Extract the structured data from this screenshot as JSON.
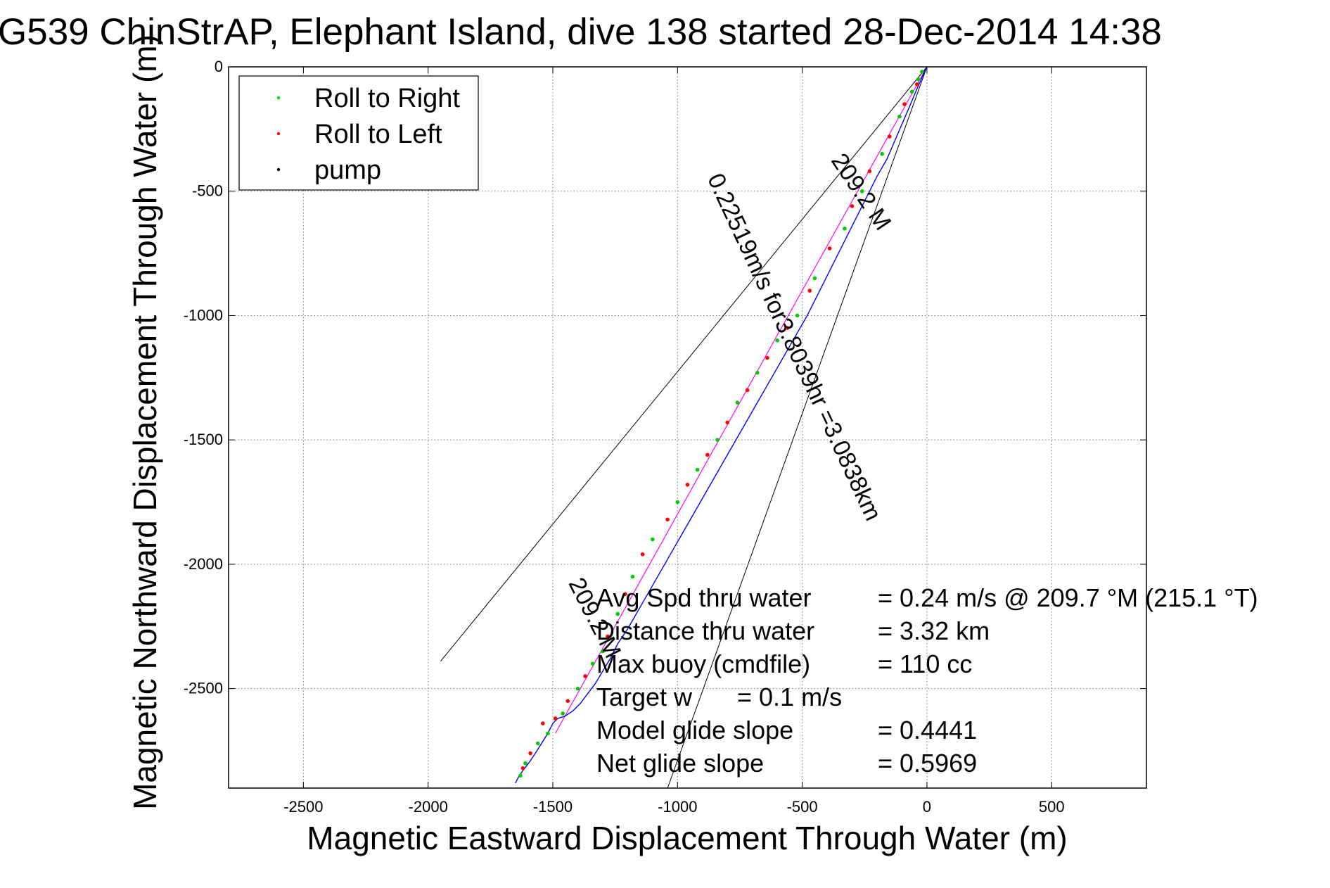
{
  "chart_data": {
    "type": "line",
    "title": "G539 ChinStrAP, Elephant Island, dive 138 started 28-Dec-2014 14:38",
    "xlabel": "Magnetic Eastward Displacement Through Water (m)",
    "ylabel": "Magnetic Northward Displacement Through Water (m)",
    "xlim": [
      -2800,
      880
    ],
    "ylim": [
      -2900,
      0
    ],
    "xticks": [
      -2500,
      -2000,
      -1500,
      -1000,
      -500,
      0,
      500
    ],
    "yticks": [
      0,
      -500,
      -1000,
      -1500,
      -2000,
      -2500
    ],
    "grid": true,
    "legend_position": "top-left",
    "legend": [
      {
        "label": "Roll to Right",
        "color": "#00dd00"
      },
      {
        "label": "Roll to Left",
        "color": "#ff0000"
      },
      {
        "label": "pump",
        "color": "#000000"
      }
    ],
    "series": [
      {
        "name": "Roll to Right",
        "color": "#00cc00",
        "x": [
          -20,
          -35,
          -60,
          -110,
          -180,
          -260,
          -330,
          -450,
          -520,
          -600,
          -680,
          -760,
          -840,
          -920,
          -1000,
          -1100,
          -1180,
          -1240,
          -1300,
          -1340,
          -1400,
          -1460,
          -1520,
          -1560,
          -1610,
          -1630
        ],
        "y": [
          -20,
          -50,
          -100,
          -200,
          -350,
          -500,
          -650,
          -850,
          -1000,
          -1100,
          -1230,
          -1350,
          -1500,
          -1620,
          -1750,
          -1900,
          -2050,
          -2200,
          -2350,
          -2400,
          -2500,
          -2600,
          -2680,
          -2720,
          -2800,
          -2850
        ]
      },
      {
        "name": "Roll to Left",
        "color": "#ff0000",
        "x": [
          -40,
          -90,
          -150,
          -230,
          -300,
          -390,
          -470,
          -560,
          -640,
          -720,
          -800,
          -880,
          -960,
          -1040,
          -1140,
          -1210,
          -1280,
          -1370,
          -1440,
          -1490,
          -1540,
          -1590,
          -1620
        ],
        "y": [
          -70,
          -150,
          -280,
          -420,
          -560,
          -730,
          -900,
          -1050,
          -1170,
          -1300,
          -1430,
          -1560,
          -1680,
          -1820,
          -1960,
          -2120,
          -2290,
          -2450,
          -2550,
          -2620,
          -2640,
          -2760,
          -2820
        ]
      }
    ],
    "track": {
      "name": "glider track",
      "color": "#0000ff",
      "x": [
        0,
        -10,
        -25,
        -45,
        -70,
        -100,
        -130,
        -160,
        -200,
        -240,
        -280,
        -320,
        -360,
        -400,
        -440,
        -480,
        -520,
        -560,
        -600,
        -640,
        -680,
        -720,
        -760,
        -800,
        -840,
        -880,
        -920,
        -960,
        -1000,
        -1040,
        -1080,
        -1120,
        -1160,
        -1200,
        -1240,
        -1270,
        -1300,
        -1330,
        -1360,
        -1390,
        -1420,
        -1450,
        -1480,
        -1500,
        -1520,
        -1545,
        -1570,
        -1590,
        -1605,
        -1620,
        -1635,
        -1650
      ],
      "y": [
        0,
        -20,
        -55,
        -100,
        -160,
        -230,
        -300,
        -370,
        -440,
        -520,
        -600,
        -680,
        -760,
        -840,
        -920,
        -1000,
        -1070,
        -1140,
        -1210,
        -1280,
        -1350,
        -1420,
        -1490,
        -1560,
        -1630,
        -1700,
        -1770,
        -1840,
        -1910,
        -1980,
        -2050,
        -2120,
        -2190,
        -2260,
        -2320,
        -2380,
        -2430,
        -2480,
        -2520,
        -2560,
        -2590,
        -2610,
        -2620,
        -2640,
        -2680,
        -2720,
        -2760,
        -2790,
        -2810,
        -2830,
        -2850,
        -2880
      ]
    },
    "model_line": {
      "name": "model track",
      "color": "#ff00ff",
      "x": [
        0,
        -1490
      ],
      "y": [
        0,
        -2680
      ]
    },
    "envelope_lines": [
      {
        "x": [
          0,
          -1950
        ],
        "y": [
          0,
          -2390
        ],
        "color": "#000000"
      },
      {
        "x": [
          0,
          -1040
        ],
        "y": [
          0,
          -2900
        ],
        "color": "#000000"
      }
    ],
    "annotations": [
      {
        "text": "209.2 M",
        "x": -290,
        "y": -520,
        "angle": 56
      },
      {
        "text": "0.22519m/s for3.8039hr =3.0838km",
        "x": -560,
        "y": -1140,
        "angle": 65
      },
      {
        "text": "209.2 M",
        "x": -1360,
        "y": -2230,
        "angle": 63
      }
    ],
    "stats": [
      {
        "label": "Avg Spd thru water",
        "value": "=  0.24 m/s @ 209.7 °M (215.1 °T)"
      },
      {
        "label": "Distance thru water",
        "value": "=  3.32 km"
      },
      {
        "label": "Max buoy (cmdfile)",
        "value": "= 110 cc"
      },
      {
        "label": "Target w",
        "value": "= 0.1 m/s"
      },
      {
        "label": "Model glide slope",
        "value": "= 0.4441"
      },
      {
        "label": "Net glide slope",
        "value": "= 0.5969"
      }
    ]
  }
}
